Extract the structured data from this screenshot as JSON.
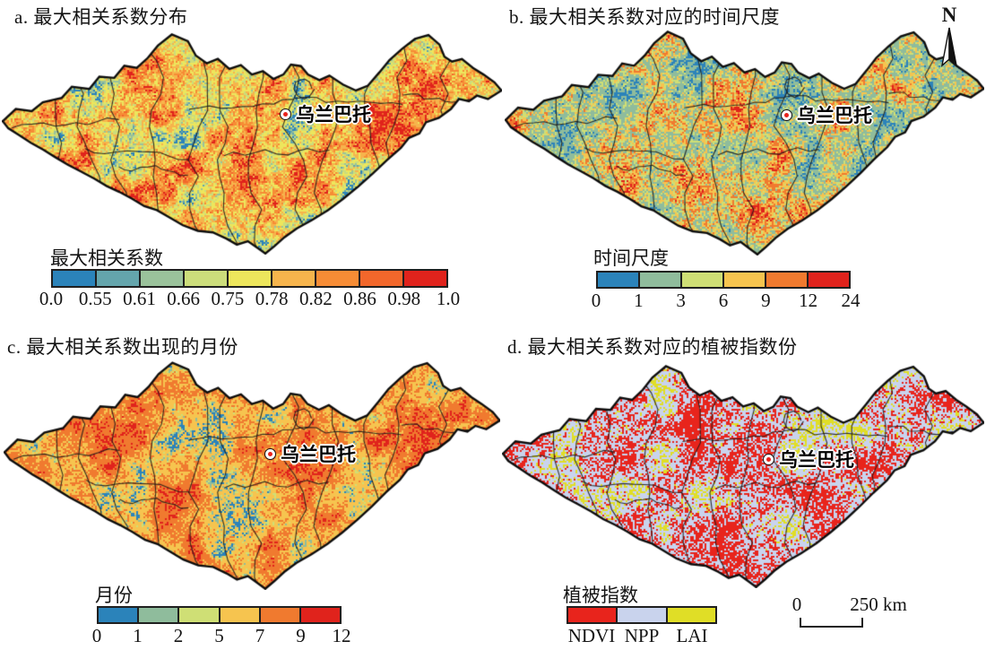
{
  "figure": {
    "background": "#ffffff",
    "north_label": "N",
    "scalebar": {
      "zero": "0",
      "distance": "250 km"
    },
    "city_marker": {
      "ring_color": "#111111",
      "dot_color": "#e8231c",
      "fill": "#ffffff"
    }
  },
  "panels": {
    "a": {
      "title": "a. 最大相关系数分布",
      "city": "乌兰巴托",
      "legend": {
        "title": "最大相关系数",
        "colors": [
          "#2b83ba",
          "#64a5ac",
          "#9ac29b",
          "#ccdd7b",
          "#ede65c",
          "#f6b44c",
          "#f68c35",
          "#f2672b",
          "#e0231c"
        ],
        "ticks": [
          "0.0",
          "0.55",
          "0.61",
          "0.66",
          "0.75",
          "0.78",
          "0.82",
          "0.86",
          "0.98",
          "1.0"
        ],
        "tick_mode": "edge"
      },
      "map": {
        "weights": [
          0.02,
          0.045,
          0.08,
          0.13,
          0.175,
          0.16,
          0.145,
          0.095,
          0.15
        ],
        "seed": 11,
        "period": 30,
        "speckle": 0.3
      }
    },
    "b": {
      "title": "b. 最大相关系数对应的时间尺度",
      "city": "乌兰巴托",
      "legend": {
        "title": "时间尺度",
        "colors": [
          "#2b83ba",
          "#8fbc9c",
          "#cfdf75",
          "#f6c44f",
          "#f07a2f",
          "#e0231c"
        ],
        "ticks": [
          "0",
          "1",
          "3",
          "6",
          "9",
          "12",
          "24"
        ],
        "tick_mode": "edge"
      },
      "map": {
        "weights": [
          0.06,
          0.335,
          0.125,
          0.175,
          0.225,
          0.08
        ],
        "seed": 22,
        "period": 34,
        "speckle": 0.36
      }
    },
    "c": {
      "title": "c. 最大相关系数出现的月份",
      "city": "乌兰巴托",
      "legend": {
        "title": "月份",
        "colors": [
          "#2b83ba",
          "#8fbc9c",
          "#cfdf75",
          "#f6c44f",
          "#f07a2f",
          "#e0231c"
        ],
        "ticks": [
          "0",
          "1",
          "2",
          "5",
          "7",
          "9",
          "12"
        ],
        "tick_mode": "edge"
      },
      "map": {
        "weights": [
          0.04,
          0.07,
          0.055,
          0.355,
          0.39,
          0.09
        ],
        "seed": 33,
        "period": 30,
        "speckle": 0.32
      }
    },
    "d": {
      "title": "d. 最大相关系数对应的植被指数份",
      "city": "乌兰巴托",
      "legend": {
        "title": "植被指数",
        "colors": [
          "#e8241c",
          "#c9d3ed",
          "#e0de26"
        ],
        "ticks": [
          "NDVI",
          "NPP",
          "LAI"
        ],
        "tick_mode": "center"
      },
      "map": {
        "weights": [
          0.37,
          0.46,
          0.17
        ],
        "seed": 44,
        "period": 36,
        "speckle": 0.46
      }
    }
  }
}
